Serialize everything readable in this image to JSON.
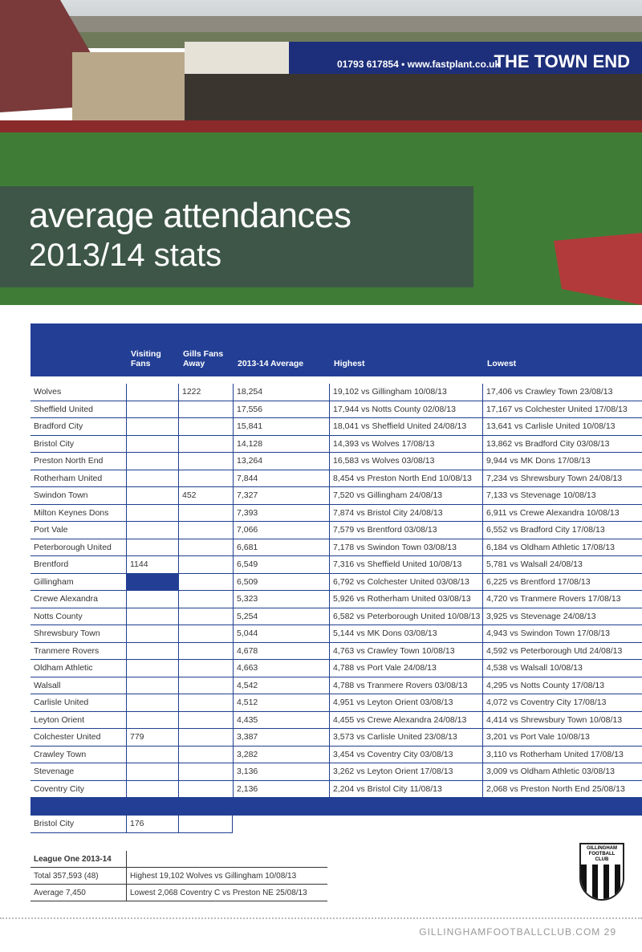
{
  "header": {
    "title": "average attendances",
    "subtitle": "2013/14 stats",
    "billboards": [
      "THE TOWN END",
      "01793 617854 • www.fastplant.co.uk"
    ]
  },
  "table": {
    "columns": [
      null,
      "Visiting Fans",
      "Gills Fans Away",
      "2013-14 Average",
      "Highest",
      "Lowest"
    ],
    "rows": [
      [
        "Wolves",
        null,
        "1222",
        "18,254",
        "19,102 vs Gillingham 10/08/13",
        "17,406 vs Crawley Town 23/08/13"
      ],
      [
        "Sheffield United",
        null,
        null,
        "17,556",
        "17,944 vs Notts County 02/08/13",
        "17,167 vs Colchester United 17/08/13"
      ],
      [
        "Bradford City",
        null,
        null,
        "15,841",
        "18,041 vs Sheffield United 24/08/13",
        "13,641 vs Carlisle United 10/08/13"
      ],
      [
        "Bristol City",
        null,
        null,
        "14,128",
        "14,393 vs Wolves 17/08/13",
        "13,862 vs Bradford City 03/08/13"
      ],
      [
        "Preston North End",
        null,
        null,
        "13,264",
        "16,583 vs Wolves 03/08/13",
        "9,944 vs MK Dons 17/08/13"
      ],
      [
        "Rotherham United",
        null,
        null,
        "7,844",
        "8,454 vs Preston North End 10/08/13",
        "7,234 vs Shrewsbury Town 24/08/13"
      ],
      [
        "Swindon Town",
        null,
        "452",
        "7,327",
        "7,520 vs Gillingham 24/08/13",
        "7,133 vs Stevenage 10/08/13"
      ],
      [
        "Milton Keynes Dons",
        null,
        null,
        "7,393",
        "7,874 vs Bristol City 24/08/13",
        "6,911 vs Crewe Alexandra 10/08/13"
      ],
      [
        "Port Vale",
        null,
        null,
        "7,066",
        "7,579 vs Brentford 03/08/13",
        "6,552 vs Bradford City 17/08/13"
      ],
      [
        "Peterborough United",
        null,
        null,
        "6,681",
        "7,178 vs Swindon Town 03/08/13",
        "6,184 vs Oldham Athletic 17/08/13"
      ],
      [
        "Brentford",
        "1144",
        null,
        "6,549",
        "7,316 vs Sheffield United 10/08/13",
        "5,781 vs Walsall 24/08/13"
      ],
      [
        "Gillingham",
        null,
        null,
        "6,509",
        "6,792 vs Colchester United 03/08/13",
        "6,225 vs Brentford 17/08/13"
      ],
      [
        "Crewe Alexandra",
        null,
        null,
        "5,323",
        "5,926 vs Rotherham United 03/08/13",
        "4,720 vs Tranmere Rovers 17/08/13"
      ],
      [
        "Notts County",
        null,
        null,
        "5,254",
        "6,582 vs Peterborough United 10/08/13",
        "3,925 vs Stevenage 24/08/13"
      ],
      [
        "Shrewsbury Town",
        null,
        null,
        "5,044",
        "5,144 vs MK Dons 03/08/13",
        "4,943 vs Swindon Town 17/08/13"
      ],
      [
        "Tranmere Rovers",
        null,
        null,
        "4,678",
        "4,763 vs Crawley Town 10/08/13",
        "4,592 vs Peterborough Utd 24/08/13"
      ],
      [
        "Oldham Athletic",
        null,
        null,
        "4,663",
        "4,788 vs Port Vale 24/08/13",
        "4,538 vs Walsall 10/08/13"
      ],
      [
        "Walsall",
        null,
        null,
        "4,542",
        "4,788 vs Tranmere Rovers 03/08/13",
        "4,295 vs Notts County 17/08/13"
      ],
      [
        "Carlisle United",
        null,
        null,
        "4,512",
        "4,951 vs Leyton Orient 03/08/13",
        "4,072 vs Coventry City 17/08/13"
      ],
      [
        "Leyton Orient",
        null,
        null,
        "4,435",
        "4,455 vs Crewe Alexandra 24/08/13",
        "4,414 vs Shrewsbury Town 10/08/13"
      ],
      [
        "Colchester United",
        "779",
        null,
        "3,387",
        "3,573 vs Carlisle United 23/08/13",
        "3,201 vs Port Vale 10/08/13"
      ],
      [
        "Crawley Town",
        null,
        null,
        "3,282",
        "3,454 vs Coventry City 03/08/13",
        "3,110 vs Rotherham United 17/08/13"
      ],
      [
        "Stevenage",
        null,
        null,
        "3,136",
        "3,262 vs Leyton Orient 17/08/13",
        "3,009 vs Oldham Athletic 03/08/13"
      ],
      [
        "Coventry City",
        null,
        null,
        "2,136",
        "2,204 vs Bristol City 11/08/13",
        "2,068 vs Preston North End 25/08/13"
      ]
    ],
    "extra_row": [
      "Bristol City",
      "176",
      null
    ]
  },
  "summary": {
    "rows": [
      [
        "League One 2013-14",
        null
      ],
      [
        "Total 357,593 (48)",
        "Highest 19,102 Wolves vs Gillingham 10/08/13"
      ],
      [
        "Average 7,450",
        "Lowest 2,068 Coventry C vs Preston NE 25/08/13"
      ]
    ]
  },
  "crest": "GILLINGHAM FOOTBALL CLUB",
  "footer": "GILLINGHAMFOOTBALLCLUB.COM 29"
}
